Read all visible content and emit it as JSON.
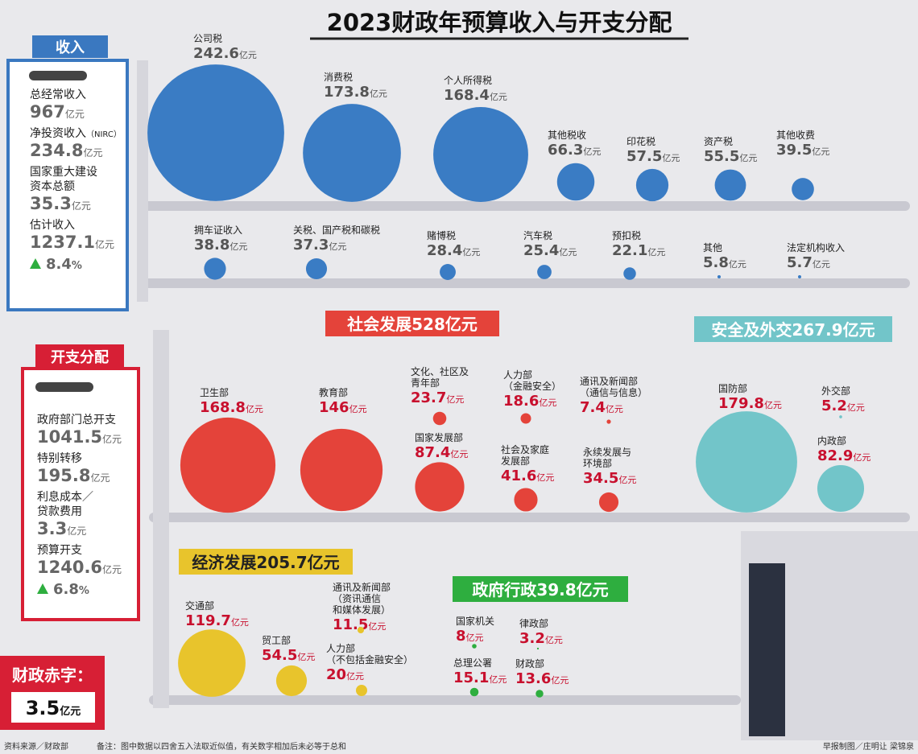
{
  "title": "2023财政年预算收入与开支分配",
  "unit": "亿元",
  "percent_sign": "%",
  "revenue": {
    "heading": "收入",
    "summary": [
      {
        "label": [
          "总经常收入"
        ],
        "value": 967
      },
      {
        "label": [
          "净投资收入"
        ],
        "note": "（NIRC）",
        "value": 234.8
      },
      {
        "label": [
          "国家重大建设",
          "资本总额"
        ],
        "value": 35.3
      },
      {
        "label": [
          "估计收入"
        ],
        "value": 1237.1,
        "growth": 8.4
      }
    ],
    "items": [
      {
        "label": [
          "公司税"
        ],
        "value": 242.6
      },
      {
        "label": [
          "消费税"
        ],
        "value": 173.8
      },
      {
        "label": [
          "个人所得税"
        ],
        "value": 168.4
      },
      {
        "label": [
          "其他税收"
        ],
        "value": 66.3
      },
      {
        "label": [
          "印花税"
        ],
        "value": 57.5
      },
      {
        "label": [
          "资产税"
        ],
        "value": 55.5
      },
      {
        "label": [
          "其他收费"
        ],
        "value": 39.5
      },
      {
        "label": [
          "拥车证收入"
        ],
        "value": 38.8
      },
      {
        "label": [
          "关税、国产税和碳税"
        ],
        "value": 37.3
      },
      {
        "label": [
          "赌博税"
        ],
        "value": 28.4
      },
      {
        "label": [
          "汽车税"
        ],
        "value": 25.4
      },
      {
        "label": [
          "预扣税"
        ],
        "value": 22.1
      },
      {
        "label": [
          "其他"
        ],
        "value": 5.8
      },
      {
        "label": [
          "法定机构收入"
        ],
        "value": 5.7
      }
    ]
  },
  "expenditure": {
    "heading": "开支分配",
    "summary": [
      {
        "label": [
          "政府部门总开支"
        ],
        "value": 1041.5
      },
      {
        "label": [
          "特别转移"
        ],
        "value": 195.8
      },
      {
        "label": [
          "利息成本／",
          "贷款费用"
        ],
        "value": 3.3
      },
      {
        "label": [
          "预算开支"
        ],
        "value": 1240.6,
        "growth": 6.8
      }
    ],
    "deficit": {
      "label": "财政赤字：",
      "value": 3.5
    }
  },
  "groups": [
    {
      "name": "社会发展",
      "total": 528,
      "color": "#e4433a",
      "items": [
        {
          "label": [
            "卫生部"
          ],
          "value": 168.8
        },
        {
          "label": [
            "教育部"
          ],
          "value": 146
        },
        {
          "label": [
            "文化、社区及",
            "青年部"
          ],
          "value": 23.7
        },
        {
          "label": [
            "国家发展部"
          ],
          "value": 87.4
        },
        {
          "label": [
            "人力部",
            "（金融安全）"
          ],
          "value": 18.6
        },
        {
          "label": [
            "通讯及新闻部",
            "（通信与信息）"
          ],
          "value": 7.4
        },
        {
          "label": [
            "社会及家庭",
            "发展部"
          ],
          "value": 41.6
        },
        {
          "label": [
            "永续发展与",
            "环境部"
          ],
          "value": 34.5
        }
      ]
    },
    {
      "name": "安全及外交",
      "total": 267.9,
      "color": "#72c5c9",
      "items": [
        {
          "label": [
            "国防部"
          ],
          "value": 179.8
        },
        {
          "label": [
            "外交部"
          ],
          "value": 5.2
        },
        {
          "label": [
            "内政部"
          ],
          "value": 82.9
        }
      ]
    },
    {
      "name": "经济发展",
      "total": 205.7,
      "color": "#e8c42c",
      "items": [
        {
          "label": [
            "交通部"
          ],
          "value": 119.7
        },
        {
          "label": [
            "贸工部"
          ],
          "value": 54.5
        },
        {
          "label": [
            "通讯及新闻部",
            "（资讯通信",
            "和媒体发展）"
          ],
          "value": 11.5
        },
        {
          "label": [
            "人力部",
            "（不包括金融安全）"
          ],
          "value": 20
        }
      ]
    },
    {
      "name": "政府行政",
      "total": 39.8,
      "color": "#2eae3f",
      "items": [
        {
          "label": [
            "国家机关"
          ],
          "value": 8
        },
        {
          "label": [
            "律政部"
          ],
          "value": 3.2
        },
        {
          "label": [
            "总理公署"
          ],
          "value": 15.1
        },
        {
          "label": [
            "财政部"
          ],
          "value": 13.6
        }
      ]
    }
  ],
  "footer": {
    "source": "资料来源／财政部",
    "note": "备注：图中数据以四舍五入法取近似值，有关数字相加后未必等于总和",
    "credit": "早报制图／庄明让 梁锦泉"
  }
}
